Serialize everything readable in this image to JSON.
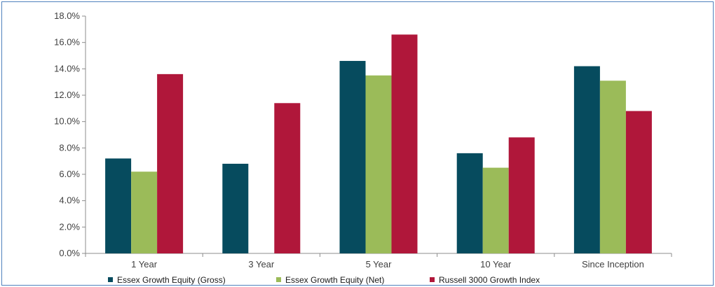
{
  "chart_data": {
    "type": "bar",
    "categories": [
      "1 Year",
      "3 Year",
      "5 Year",
      "10 Year",
      "Since Inception"
    ],
    "series": [
      {
        "name": "Essex Growth Equity (Gross)",
        "color": "#064b5e",
        "values": [
          7.2,
          6.8,
          14.6,
          7.6,
          14.2
        ]
      },
      {
        "name": "Essex Growth Equity (Net)",
        "color": "#9bbb59",
        "values": [
          6.2,
          null,
          13.5,
          6.5,
          13.1
        ]
      },
      {
        "name": "Russell 3000 Growth Index",
        "color": "#b0173a",
        "values": [
          13.6,
          11.4,
          16.6,
          8.8,
          10.8
        ]
      }
    ],
    "ylim": [
      0,
      18
    ],
    "yticks": [
      "0.0%",
      "2.0%",
      "4.0%",
      "6.0%",
      "8.0%",
      "10.0%",
      "12.0%",
      "14.0%",
      "16.0%",
      "18.0%"
    ],
    "grid": false,
    "legend_position": "bottom"
  }
}
